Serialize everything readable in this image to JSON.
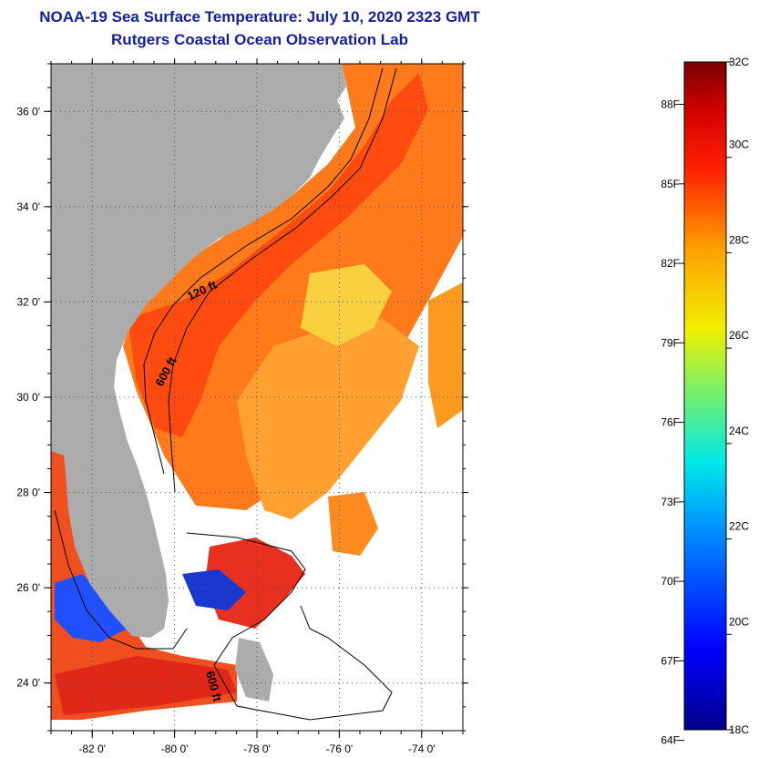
{
  "title": "NOAA-19 Sea Surface Temperature:  July 10, 2020 2323 GMT",
  "subtitle": "Rutgers Coastal Ocean Observation Lab",
  "map": {
    "lon_range": [
      -83.0,
      -73.0
    ],
    "lat_range": [
      23.0,
      37.0
    ],
    "lon_ticks": [
      {
        "value": -82,
        "label": "-82 0'"
      },
      {
        "value": -80,
        "label": "-80 0'"
      },
      {
        "value": -78,
        "label": "-78 0'"
      },
      {
        "value": -76,
        "label": "-76 0'"
      },
      {
        "value": -74,
        "label": "-74 0'"
      }
    ],
    "lat_ticks": [
      {
        "value": 24,
        "label": "24 0'"
      },
      {
        "value": 26,
        "label": "26 0'"
      },
      {
        "value": 28,
        "label": "28 0'"
      },
      {
        "value": 30,
        "label": "30 0'"
      },
      {
        "value": 32,
        "label": "32 0'"
      },
      {
        "value": 34,
        "label": "34 0'"
      },
      {
        "value": 36,
        "label": "36 0'"
      }
    ],
    "contour_labels": {
      "shallow": "120 ft",
      "mid": "600 ft",
      "south": "600 ft"
    },
    "colors": {
      "land": "#acacac",
      "no_data": "#ffffff",
      "contour": "#000000"
    }
  },
  "colorbar": {
    "min_c": 18,
    "max_c": 32,
    "celsius_labels": [
      {
        "value": 32,
        "label": "32C"
      },
      {
        "value": 30,
        "label": "30C"
      },
      {
        "value": 28,
        "label": "28C"
      },
      {
        "value": 26,
        "label": "26C"
      },
      {
        "value": 24,
        "label": "24C"
      },
      {
        "value": 22,
        "label": "22C"
      },
      {
        "value": 20,
        "label": "20C"
      },
      {
        "value": 18,
        "label": "18C"
      }
    ],
    "fahrenheit_labels": [
      {
        "value": 88,
        "label": "88F"
      },
      {
        "value": 85,
        "label": "85F"
      },
      {
        "value": 82,
        "label": "82F"
      },
      {
        "value": 79,
        "label": "79F"
      },
      {
        "value": 76,
        "label": "76F"
      },
      {
        "value": 73,
        "label": "73F"
      },
      {
        "value": 70,
        "label": "70F"
      },
      {
        "value": 67,
        "label": "67F"
      },
      {
        "value": 64,
        "label": "64F"
      }
    ]
  }
}
